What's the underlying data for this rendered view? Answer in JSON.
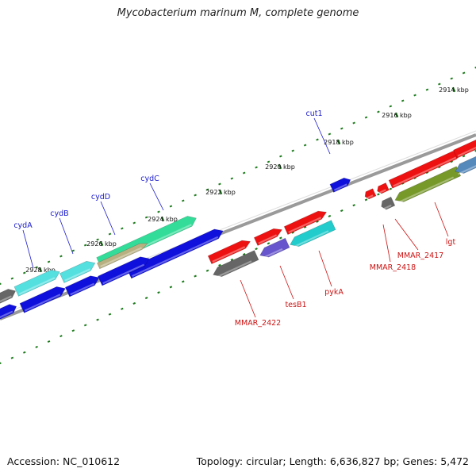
{
  "title": "Mycobacterium marinum M, complete genome",
  "footer": {
    "accession": "Accession: NC_010612",
    "summary": "Topology: circular; Length: 6,636,827 bp; Genes: 5,472"
  },
  "colors": {
    "backbone": "#8a8a8a",
    "tick": "#1b7a1b",
    "label_forward": "#1a1acc",
    "label_reverse": "#cc1111",
    "red": "#ee1111",
    "blue": "#1010dd",
    "cyan": "#22cccc",
    "aqua": "#55e0e0",
    "green": "#33dd99",
    "olive": "#77992a",
    "steel": "#5588bb",
    "gray": "#666666",
    "purple": "#6655cc",
    "tan": "#b8b080"
  },
  "axis_labels": [
    {
      "text": "2914 kbp"
    },
    {
      "text": "2916 kbp"
    },
    {
      "text": "2918 kbp"
    },
    {
      "text": "2920 kbp"
    },
    {
      "text": "2922 kbp"
    },
    {
      "text": "2924 kbp"
    },
    {
      "text": "2926 kbp"
    },
    {
      "text": "2928 kbp"
    }
  ],
  "forward_genes": [
    {
      "label": "cut1"
    },
    {
      "label": "cydC"
    },
    {
      "label": "cydD"
    },
    {
      "label": "cydB"
    },
    {
      "label": "cydA"
    }
  ],
  "reverse_genes": [
    {
      "label": "MMAR_2422"
    },
    {
      "label": "tesB1"
    },
    {
      "label": "pykA"
    },
    {
      "label": "MMAR_2418"
    },
    {
      "label": "MMAR_2417"
    },
    {
      "label": "lgt"
    }
  ]
}
